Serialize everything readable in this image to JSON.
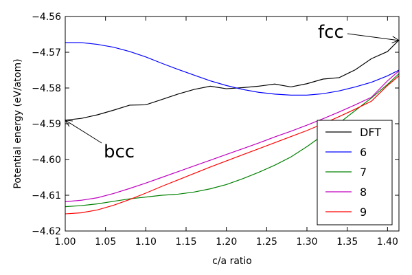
{
  "chart_data": {
    "type": "line",
    "title": "",
    "xlabel": "c/a ratio",
    "ylabel": "Potential energy (eV/atom)",
    "xlim": [
      1.0,
      1.4142
    ],
    "ylim": [
      -4.62,
      -4.56
    ],
    "grid": false,
    "xticks": [
      1.0,
      1.05,
      1.1,
      1.15,
      1.2,
      1.25,
      1.3,
      1.35,
      1.4
    ],
    "xtick_labels": [
      "1.00",
      "1.05",
      "1.10",
      "1.15",
      "1.20",
      "1.25",
      "1.30",
      "1.35",
      "1.40"
    ],
    "yticks": [
      -4.62,
      -4.61,
      -4.6,
      -4.59,
      -4.58,
      -4.57,
      -4.56
    ],
    "ytick_labels": [
      "−4.62",
      "−4.61",
      "−4.60",
      "−4.59",
      "−4.58",
      "−4.57",
      "−4.56"
    ],
    "legend": {
      "position": "lower-right"
    },
    "series": [
      {
        "name": "DFT",
        "color": "#000000",
        "x": [
          1.0,
          1.02,
          1.04,
          1.06,
          1.08,
          1.1,
          1.12,
          1.14,
          1.16,
          1.18,
          1.2,
          1.22,
          1.24,
          1.26,
          1.28,
          1.3,
          1.32,
          1.34,
          1.36,
          1.38,
          1.4,
          1.4142
        ],
        "y": [
          -4.589,
          -4.5885,
          -4.5875,
          -4.5862,
          -4.5848,
          -4.5847,
          -4.5832,
          -4.5817,
          -4.5804,
          -4.5795,
          -4.5802,
          -4.5799,
          -4.5795,
          -4.5789,
          -4.5797,
          -4.5788,
          -4.5775,
          -4.5771,
          -4.5749,
          -4.5718,
          -4.5698,
          -4.5666
        ]
      },
      {
        "name": "6",
        "color": "#0000ff",
        "x": [
          1.0,
          1.02,
          1.04,
          1.06,
          1.08,
          1.1,
          1.12,
          1.14,
          1.16,
          1.18,
          1.2,
          1.22,
          1.24,
          1.26,
          1.28,
          1.3,
          1.32,
          1.34,
          1.36,
          1.38,
          1.4,
          1.4142
        ],
        "y": [
          -4.5673,
          -4.5673,
          -4.5678,
          -4.5686,
          -4.5698,
          -4.5713,
          -4.5731,
          -4.5748,
          -4.5764,
          -4.578,
          -4.5793,
          -4.5804,
          -4.5812,
          -4.5817,
          -4.582,
          -4.582,
          -4.5816,
          -4.5808,
          -4.5797,
          -4.5784,
          -4.5766,
          -4.575
        ]
      },
      {
        "name": "7",
        "color": "#008000",
        "x": [
          1.0,
          1.02,
          1.04,
          1.06,
          1.08,
          1.1,
          1.12,
          1.14,
          1.16,
          1.18,
          1.2,
          1.22,
          1.24,
          1.26,
          1.28,
          1.3,
          1.32,
          1.34,
          1.36,
          1.38,
          1.4,
          1.4142
        ],
        "y": [
          -4.6132,
          -4.6129,
          -4.6124,
          -4.6117,
          -4.611,
          -4.6105,
          -4.61,
          -4.6097,
          -4.6091,
          -4.6082,
          -4.607,
          -4.6054,
          -4.6036,
          -4.6016,
          -4.5993,
          -4.5964,
          -4.5932,
          -4.5898,
          -4.5863,
          -4.5828,
          -4.579,
          -4.576
        ]
      },
      {
        "name": "8",
        "color": "#bf00bf",
        "x": [
          1.0,
          1.02,
          1.04,
          1.06,
          1.08,
          1.1,
          1.12,
          1.14,
          1.16,
          1.18,
          1.2,
          1.22,
          1.24,
          1.26,
          1.28,
          1.3,
          1.32,
          1.34,
          1.36,
          1.38,
          1.4,
          1.4142
        ],
        "y": [
          -4.6118,
          -4.6114,
          -4.6107,
          -4.6095,
          -4.6081,
          -4.6066,
          -4.605,
          -4.6034,
          -4.6018,
          -4.6002,
          -4.5986,
          -4.597,
          -4.5954,
          -4.5937,
          -4.5921,
          -4.5904,
          -4.5886,
          -4.5867,
          -4.5847,
          -4.5826,
          -4.578,
          -4.5752
        ]
      },
      {
        "name": "9",
        "color": "#ff0000",
        "x": [
          1.0,
          1.02,
          1.04,
          1.06,
          1.08,
          1.1,
          1.12,
          1.14,
          1.16,
          1.18,
          1.2,
          1.22,
          1.24,
          1.26,
          1.28,
          1.3,
          1.32,
          1.34,
          1.36,
          1.38,
          1.4,
          1.4142
        ],
        "y": [
          -4.6152,
          -4.6149,
          -4.6141,
          -4.6128,
          -4.6112,
          -4.6094,
          -4.6075,
          -4.6057,
          -4.6039,
          -4.6021,
          -4.6004,
          -4.5987,
          -4.597,
          -4.5953,
          -4.5936,
          -4.5919,
          -4.59,
          -4.588,
          -4.5859,
          -4.5837,
          -4.5793,
          -4.5766
        ]
      }
    ],
    "annotations": [
      {
        "text": "fcc",
        "points_to": {
          "x": 1.4142,
          "y": -4.5667
        }
      },
      {
        "text": "bcc",
        "points_to": {
          "x": 1.0,
          "y": -4.589
        }
      }
    ]
  }
}
